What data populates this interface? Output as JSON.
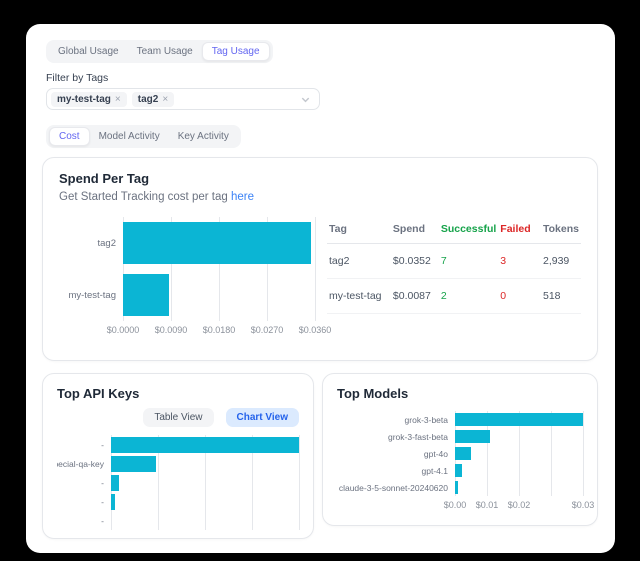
{
  "colors": {
    "accent": "#6366f1",
    "bar": "#0bb5d4",
    "link": "#3b82f6",
    "green": "#16a34a",
    "red": "#dc2626",
    "chart_view_bg": "#dbeafe",
    "chart_view_text": "#2563eb"
  },
  "icons": {
    "close": "×"
  },
  "tabs_primary": {
    "items": [
      "Global Usage",
      "Team Usage",
      "Tag Usage"
    ],
    "active": "Tag Usage"
  },
  "filter": {
    "label": "Filter by Tags",
    "chips": [
      "my-test-tag",
      "tag2"
    ]
  },
  "tabs_secondary": {
    "items": [
      "Cost",
      "Model Activity",
      "Key Activity"
    ],
    "active": "Cost"
  },
  "spend_card": {
    "title": "Spend Per Tag",
    "subtitle_prefix": "Get Started Tracking cost per tag ",
    "subtitle_link": "here",
    "table": {
      "headers": [
        "Tag",
        "Spend",
        "Successful",
        "Failed",
        "Tokens"
      ],
      "rows": [
        [
          "tag2",
          "$0.0352",
          "7",
          "3",
          "2,939"
        ],
        [
          "my-test-tag",
          "$0.0087",
          "2",
          "0",
          "518"
        ]
      ]
    }
  },
  "api_keys_card": {
    "title": "Top API Keys",
    "table_view_label": "Table View",
    "chart_view_label": "Chart View",
    "active_view": "Chart View"
  },
  "models_card": {
    "title": "Top Models"
  },
  "chart_data": [
    {
      "id": "spend-per-tag",
      "type": "bar",
      "orientation": "horizontal",
      "title": "Spend Per Tag",
      "categories": [
        "tag2",
        "my-test-tag"
      ],
      "values": [
        0.0352,
        0.0087
      ],
      "xlim": [
        0,
        0.036
      ],
      "grid": true,
      "legend": false,
      "ticks": [
        {
          "label": "$0.0000",
          "pos": 0
        },
        {
          "label": "$0.0090",
          "pos": 0.25
        },
        {
          "label": "$0.0180",
          "pos": 0.5
        },
        {
          "label": "$0.0270",
          "pos": 0.75
        },
        {
          "label": "$0.0360",
          "pos": 1
        }
      ]
    },
    {
      "id": "top-api-keys",
      "type": "bar",
      "orientation": "horizontal",
      "title": "Top API Keys",
      "categories": [
        "-",
        "pecial-qa-key",
        "-",
        "-",
        "-"
      ],
      "values": [
        0.035,
        0.0083,
        0.0015,
        0.0007,
        0
      ],
      "xlim": [
        0,
        0.035
      ],
      "grid": true,
      "legend": false,
      "x_axis_labels_visible": false,
      "ticks": [
        {
          "label": "",
          "pos": 0
        },
        {
          "label": "",
          "pos": 0.25
        },
        {
          "label": "",
          "pos": 0.5
        },
        {
          "label": "",
          "pos": 0.75
        },
        {
          "label": "",
          "pos": 1
        }
      ]
    },
    {
      "id": "top-models",
      "type": "bar",
      "orientation": "horizontal",
      "title": "Top Models",
      "categories": [
        "grok-3-beta",
        "grok-3-fast-beta",
        "gpt-4o",
        "gpt-4.1",
        "claude-3-5-sonnet-20240620"
      ],
      "values": [
        0.0307,
        0.0085,
        0.0039,
        0.0017,
        0.0006
      ],
      "xlim": [
        0,
        0.0307
      ],
      "grid": true,
      "legend": false,
      "ticks": [
        {
          "label": "$0.00",
          "pos": 0
        },
        {
          "label": "$0.01",
          "pos": 0.25
        },
        {
          "label": "$0.02",
          "pos": 0.5
        },
        {
          "label": "",
          "pos": 0.75
        },
        {
          "label": "$0.03",
          "pos": 1
        }
      ]
    }
  ]
}
